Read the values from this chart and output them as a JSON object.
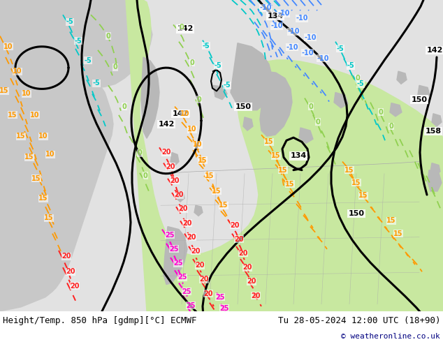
{
  "title_left": "Height/Temp. 850 hPa [gdmp][°C] ECMWF",
  "title_right": "Tu 28-05-2024 12:00 UTC (18+90)",
  "copyright": "© weatheronline.co.uk",
  "fig_width": 6.34,
  "fig_height": 4.9,
  "dpi": 100,
  "sea_color": "#e2e2e2",
  "land_light_gray": "#c8c8c8",
  "land_green": "#c8e8a0",
  "land_gray_terrain": "#b8b8b8",
  "bottom_bar_color": "#ffffff",
  "title_fontsize": 9,
  "copyright_color": "#000080",
  "copyright_fontsize": 8,
  "black_lw": 2.2,
  "color_green": "#90d050",
  "color_cyan": "#00c8c8",
  "color_blue": "#4488ff",
  "color_orange": "#ff9900",
  "color_red": "#ff2020",
  "color_magenta": "#ff00cc"
}
